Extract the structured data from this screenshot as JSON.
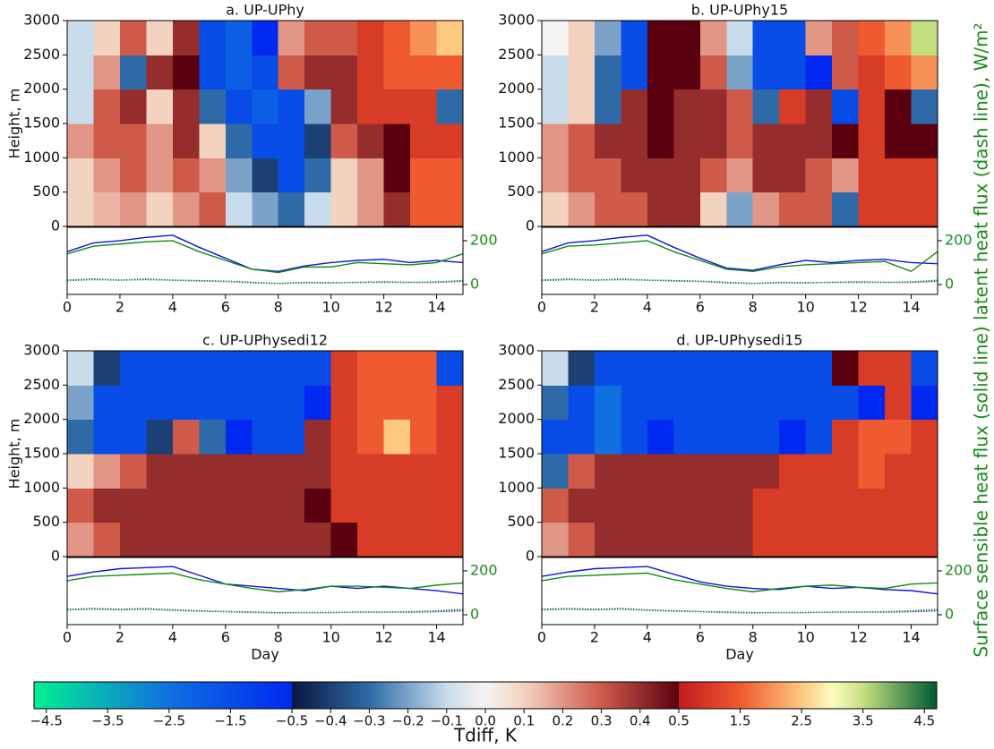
{
  "chart_data": [
    {
      "type": "heatmap",
      "title": "a. UP-UPhy",
      "ylabel": "Height, m",
      "x_bins": [
        0,
        1,
        2,
        3,
        4,
        5,
        6,
        7,
        8,
        9,
        10,
        11,
        12,
        13,
        14,
        15
      ],
      "y_bins": [
        0,
        500,
        1000,
        1500,
        2000,
        2500,
        3000
      ],
      "z": [
        [
          0.1,
          0.15,
          0.2,
          0.1,
          0.2,
          0.3,
          -0.1,
          -0.2,
          -0.3,
          -0.1,
          0.1,
          0.2,
          0.4,
          1.5,
          1.5
        ],
        [
          0.1,
          0.2,
          0.3,
          0.2,
          0.3,
          0.2,
          -0.2,
          -0.4,
          -1.5,
          -0.3,
          0.1,
          0.2,
          0.5,
          1.5,
          1.5
        ],
        [
          0.2,
          0.3,
          0.3,
          0.2,
          0.4,
          0.1,
          -0.3,
          -1.5,
          -1.5,
          -0.4,
          0.3,
          0.4,
          0.5,
          1.0,
          1.0
        ],
        [
          -0.1,
          0.3,
          0.4,
          0.1,
          0.4,
          -0.3,
          -1.5,
          -2,
          -1.5,
          -0.2,
          0.4,
          1.0,
          1.0,
          1.0,
          -0.3
        ],
        [
          -0.1,
          0.2,
          -0.3,
          0.4,
          0.5,
          -1.5,
          -2,
          -1.5,
          0.3,
          0.4,
          0.4,
          1.0,
          1.5,
          1.5,
          1.5
        ],
        [
          -0.1,
          0.1,
          0.3,
          0.1,
          0.4,
          -1.5,
          -2,
          -0.5,
          0.2,
          0.3,
          0.3,
          1.0,
          1.5,
          2.0,
          2.5
        ]
      ],
      "xlim": [
        0,
        15
      ],
      "ylim": [
        0,
        3000
      ],
      "yticks": [
        0,
        500,
        1000,
        1500,
        2000,
        2500,
        3000
      ],
      "flux": {
        "x": [
          0,
          1,
          2,
          3,
          4,
          5,
          6,
          7,
          8,
          9,
          10,
          11,
          12,
          13,
          14,
          15
        ],
        "xlim": [
          0,
          15
        ],
        "xticks": [
          0,
          2,
          4,
          6,
          8,
          10,
          12,
          14
        ],
        "ylim": [
          -45,
          261
        ],
        "yticks": [
          0,
          200
        ],
        "tick_color": "#1a8a1a",
        "series": [
          {
            "color": "#1010e0",
            "style": "solid",
            "values": [
              150,
              190,
              200,
              215,
              225,
              170,
              120,
              70,
              60,
              85,
              100,
              110,
              115,
              100,
              110,
              100
            ]
          },
          {
            "color": "#108a10",
            "style": "solid",
            "values": [
              140,
              175,
              185,
              195,
              200,
              150,
              110,
              70,
              55,
              80,
              80,
              100,
              95,
              90,
              100,
              140
            ]
          },
          {
            "color": "#1010e0",
            "style": "dotted",
            "values": [
              20,
              25,
              20,
              25,
              20,
              18,
              15,
              10,
              5,
              10,
              8,
              10,
              12,
              10,
              10,
              15
            ]
          },
          {
            "color": "#108a10",
            "style": "dotted",
            "values": [
              18,
              22,
              20,
              22,
              20,
              16,
              14,
              8,
              5,
              8,
              8,
              10,
              10,
              10,
              12,
              18
            ]
          }
        ]
      }
    },
    {
      "type": "heatmap",
      "title": "b. UP-UPhy15",
      "x_bins": [
        0,
        1,
        2,
        3,
        4,
        5,
        6,
        7,
        8,
        9,
        10,
        11,
        12,
        13,
        14,
        15
      ],
      "y_bins": [
        0,
        500,
        1000,
        1500,
        2000,
        2500,
        3000
      ],
      "z": [
        [
          0.1,
          0.2,
          0.3,
          0.3,
          0.4,
          0.4,
          0.1,
          -0.2,
          0.2,
          0.3,
          0.3,
          -0.3,
          1.0,
          1.0,
          1.0
        ],
        [
          0.2,
          0.3,
          0.3,
          0.4,
          0.4,
          0.4,
          0.3,
          0.2,
          0.4,
          0.4,
          0.3,
          0.2,
          1.0,
          1.0,
          1.0
        ],
        [
          0.2,
          0.3,
          0.4,
          0.4,
          0.5,
          0.4,
          0.4,
          0.3,
          0.4,
          0.4,
          0.4,
          0.5,
          1.0,
          0.5,
          0.5
        ],
        [
          -0.1,
          0.1,
          -0.3,
          0.4,
          0.5,
          0.4,
          0.4,
          0.3,
          -0.3,
          1.0,
          0.4,
          -1.5,
          1.0,
          0.5,
          -0.3
        ],
        [
          -0.1,
          0.1,
          -0.3,
          -1.5,
          0.5,
          0.5,
          0.3,
          -0.2,
          -1.5,
          -1.5,
          -0.5,
          0.3,
          1.0,
          1.5,
          2.0
        ],
        [
          0.0,
          0.1,
          -0.2,
          -1.5,
          0.5,
          0.5,
          0.2,
          -0.1,
          -1.5,
          -1.5,
          0.2,
          0.3,
          1.5,
          2.0,
          3.5
        ]
      ],
      "xlim": [
        0,
        15
      ],
      "ylim": [
        0,
        3000
      ],
      "yticks": [
        0,
        500,
        1000,
        1500,
        2000,
        2500,
        3000
      ],
      "flux": {
        "x": [
          0,
          1,
          2,
          3,
          4,
          5,
          6,
          7,
          8,
          9,
          10,
          11,
          12,
          13,
          14,
          15
        ],
        "xlim": [
          0,
          15
        ],
        "xticks": [
          0,
          2,
          4,
          6,
          8,
          10,
          12,
          14
        ],
        "ylim": [
          -45,
          261
        ],
        "yticks": [
          0,
          200
        ],
        "tick_color": "#1a8a1a",
        "series": [
          {
            "color": "#1010e0",
            "style": "solid",
            "values": [
              150,
              190,
              200,
              215,
              225,
              170,
              120,
              75,
              65,
              90,
              110,
              100,
              110,
              115,
              100,
              95
            ]
          },
          {
            "color": "#108a10",
            "style": "solid",
            "values": [
              140,
              175,
              180,
              190,
              200,
              150,
              110,
              70,
              60,
              80,
              90,
              95,
              100,
              105,
              60,
              150
            ]
          },
          {
            "color": "#1010e0",
            "style": "dotted",
            "values": [
              20,
              25,
              20,
              25,
              20,
              18,
              15,
              10,
              5,
              10,
              8,
              10,
              12,
              10,
              10,
              15
            ]
          },
          {
            "color": "#108a10",
            "style": "dotted",
            "values": [
              18,
              22,
              20,
              22,
              20,
              16,
              14,
              8,
              5,
              8,
              8,
              10,
              10,
              10,
              12,
              20
            ]
          }
        ]
      }
    },
    {
      "type": "heatmap",
      "title": "c. UP-UPhysedi12",
      "ylabel": "Height, m",
      "xlabel": "Day",
      "x_bins": [
        0,
        1,
        2,
        3,
        4,
        5,
        6,
        7,
        8,
        9,
        10,
        11,
        12,
        13,
        14,
        15
      ],
      "y_bins": [
        0,
        500,
        1000,
        1500,
        2000,
        2500,
        3000
      ],
      "z": [
        [
          0.2,
          0.3,
          0.4,
          0.4,
          0.4,
          0.4,
          0.4,
          0.4,
          0.4,
          0.4,
          0.5,
          1.0,
          1.0,
          1.0,
          1.0
        ],
        [
          0.3,
          0.4,
          0.4,
          0.4,
          0.4,
          0.4,
          0.4,
          0.4,
          0.4,
          0.5,
          1.0,
          1.0,
          1.0,
          1.0,
          1.0
        ],
        [
          0.1,
          0.2,
          0.3,
          0.4,
          0.4,
          0.4,
          0.4,
          0.4,
          0.4,
          0.4,
          1.0,
          1.0,
          1.0,
          1.0,
          1.0
        ],
        [
          -0.3,
          -1.5,
          -1.5,
          -0.4,
          0.3,
          -0.3,
          -0.5,
          -1.5,
          -1.5,
          0.4,
          1.0,
          1.5,
          2.5,
          1.5,
          1.0
        ],
        [
          -0.2,
          -1.5,
          -1.5,
          -1.5,
          -1.5,
          -1.5,
          -1.5,
          -1.5,
          -1.5,
          -0.5,
          1.0,
          1.5,
          1.5,
          1.5,
          1.0
        ],
        [
          -0.1,
          -0.4,
          -1.5,
          -1.5,
          -1.5,
          -1.5,
          -1.5,
          -1.5,
          -1.5,
          -1.5,
          1.0,
          1.5,
          1.5,
          1.5,
          -1.5
        ]
      ],
      "xlim": [
        0,
        15
      ],
      "ylim": [
        0,
        3000
      ],
      "yticks": [
        0,
        500,
        1000,
        1500,
        2000,
        2500,
        3000
      ],
      "flux": {
        "x": [
          0,
          1,
          2,
          3,
          4,
          5,
          6,
          7,
          8,
          9,
          10,
          11,
          12,
          13,
          14,
          15
        ],
        "xlim": [
          0,
          15
        ],
        "xticks": [
          0,
          2,
          4,
          6,
          8,
          10,
          12,
          14
        ],
        "ylim": [
          -45,
          261
        ],
        "yticks": [
          0,
          200
        ],
        "tick_color": "#1a8a1a",
        "series": [
          {
            "color": "#1010e0",
            "style": "solid",
            "values": [
              175,
              195,
              210,
              215,
              220,
              180,
              140,
              130,
              120,
              110,
              130,
              120,
              130,
              120,
              110,
              95
            ]
          },
          {
            "color": "#108a10",
            "style": "solid",
            "values": [
              155,
              175,
              180,
              185,
              190,
              160,
              140,
              120,
              105,
              115,
              130,
              130,
              125,
              120,
              135,
              145
            ]
          },
          {
            "color": "#1010e0",
            "style": "dotted",
            "values": [
              25,
              28,
              25,
              28,
              22,
              18,
              15,
              12,
              10,
              10,
              10,
              12,
              12,
              12,
              14,
              18
            ]
          },
          {
            "color": "#108a10",
            "style": "dotted",
            "values": [
              22,
              25,
              22,
              25,
              20,
              16,
              14,
              10,
              8,
              10,
              10,
              12,
              12,
              14,
              18,
              25
            ]
          }
        ]
      }
    },
    {
      "type": "heatmap",
      "title": "d. UP-UPhysedi15",
      "xlabel": "Day",
      "x_bins": [
        0,
        1,
        2,
        3,
        4,
        5,
        6,
        7,
        8,
        9,
        10,
        11,
        12,
        13,
        14,
        15
      ],
      "y_bins": [
        0,
        500,
        1000,
        1500,
        2000,
        2500,
        3000
      ],
      "z": [
        [
          0.2,
          0.3,
          0.4,
          0.4,
          0.4,
          0.4,
          0.4,
          0.4,
          1.0,
          1.0,
          1.0,
          1.0,
          1.0,
          1.0,
          1.0
        ],
        [
          0.3,
          0.4,
          0.4,
          0.4,
          0.4,
          0.4,
          0.4,
          0.4,
          1.0,
          1.0,
          1.0,
          1.0,
          1.0,
          1.0,
          1.0
        ],
        [
          -0.3,
          0.3,
          0.4,
          0.4,
          0.4,
          0.4,
          0.4,
          0.4,
          0.4,
          1.0,
          1.0,
          1.0,
          1.5,
          1.0,
          1.0
        ],
        [
          -1.5,
          -1.5,
          -2.5,
          -1.5,
          -0.5,
          -1.5,
          -1.5,
          -1.5,
          -1.5,
          -0.5,
          -1.5,
          1.0,
          1.5,
          1.5,
          1.0
        ],
        [
          -0.3,
          -1.5,
          -2.5,
          -1.5,
          -1.5,
          -1.5,
          -1.5,
          -1.5,
          -1.5,
          -1.5,
          -1.5,
          -1.5,
          -0.5,
          1.0,
          -0.5
        ],
        [
          -0.1,
          -0.4,
          -1.5,
          -1.5,
          -1.5,
          -1.5,
          -1.5,
          -1.5,
          -1.5,
          -1.5,
          -1.5,
          0.5,
          1.0,
          1.0,
          -1.5
        ]
      ],
      "xlim": [
        0,
        15
      ],
      "ylim": [
        0,
        3000
      ],
      "yticks": [
        0,
        500,
        1000,
        1500,
        2000,
        2500,
        3000
      ],
      "flux": {
        "x": [
          0,
          1,
          2,
          3,
          4,
          5,
          6,
          7,
          8,
          9,
          10,
          11,
          12,
          13,
          14,
          15
        ],
        "xlim": [
          0,
          15
        ],
        "xticks": [
          0,
          2,
          4,
          6,
          8,
          10,
          12,
          14
        ],
        "ylim": [
          -45,
          261
        ],
        "yticks": [
          0,
          200
        ],
        "tick_color": "#1a8a1a",
        "series": [
          {
            "color": "#1010e0",
            "style": "solid",
            "values": [
              175,
              195,
              210,
              215,
              220,
              185,
              150,
              130,
              120,
              115,
              130,
              120,
              125,
              115,
              110,
              95
            ]
          },
          {
            "color": "#108a10",
            "style": "solid",
            "values": [
              155,
              175,
              180,
              185,
              190,
              160,
              140,
              120,
              105,
              120,
              130,
              135,
              125,
              120,
              140,
              145
            ]
          },
          {
            "color": "#1010e0",
            "style": "dotted",
            "values": [
              25,
              28,
              25,
              28,
              22,
              18,
              15,
              12,
              10,
              10,
              10,
              12,
              12,
              12,
              14,
              18
            ]
          },
          {
            "color": "#108a10",
            "style": "dotted",
            "values": [
              22,
              25,
              22,
              25,
              20,
              16,
              14,
              10,
              8,
              10,
              10,
              12,
              12,
              14,
              18,
              25
            ]
          }
        ]
      }
    }
  ],
  "y2_label": "Surface sensible heat flux (solid line) latent heat flux (dash line), W/m²",
  "colorbar": {
    "label": "Tdiff, K",
    "lim": [
      -4.7,
      4.7
    ],
    "breaks": [
      -0.5,
      0.5
    ],
    "ticks": [
      {
        "value": -4.5,
        "label": "−4.5"
      },
      {
        "value": -3.5,
        "label": "−3.5"
      },
      {
        "value": -2.5,
        "label": "−2.5"
      },
      {
        "value": -1.5,
        "label": "−1.5"
      },
      {
        "value": -0.5,
        "label": "−0.5"
      },
      {
        "value": -0.4,
        "label": "−0.4"
      },
      {
        "value": -0.3,
        "label": "−0.3"
      },
      {
        "value": -0.2,
        "label": "−0.2"
      },
      {
        "value": -0.1,
        "label": "−0.1"
      },
      {
        "value": 0,
        "label": "0.0"
      },
      0.1,
      0.2,
      0.3,
      0.4,
      0.5,
      1.5,
      2.5,
      3.5,
      4.5
    ],
    "colormap": [
      [
        -4.7,
        "#00f090"
      ],
      [
        -2.5,
        "#1070e0"
      ],
      [
        -0.5,
        "#0028f0"
      ],
      [
        -0.5,
        "#0a1640"
      ],
      [
        -0.3,
        "#2f6aa8"
      ],
      [
        -0.1,
        "#c8dcec"
      ],
      [
        0,
        "#f6f4f2"
      ],
      [
        0.1,
        "#f4d2c0"
      ],
      [
        0.3,
        "#cf5a4a"
      ],
      [
        0.5,
        "#5a0010"
      ],
      [
        0.5,
        "#c01c1c"
      ],
      [
        1.5,
        "#f05a30"
      ],
      [
        2.5,
        "#fdc880"
      ],
      [
        3.0,
        "#fefcc0"
      ],
      [
        3.5,
        "#c4e080"
      ],
      [
        4.7,
        "#005a30"
      ]
    ]
  }
}
